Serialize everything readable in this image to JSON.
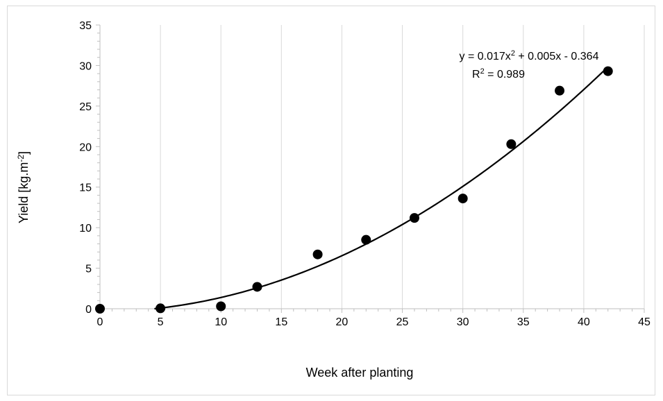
{
  "chart_data": {
    "type": "scatter",
    "xlabel": "Week after planting",
    "ylabel_main": "Yield [kg.m",
    "ylabel_sup": "-2",
    "ylabel_close": "]",
    "xlim": [
      0,
      45
    ],
    "ylim": [
      0,
      35
    ],
    "x_ticks": [
      0,
      5,
      10,
      15,
      20,
      25,
      30,
      35,
      40,
      45
    ],
    "y_ticks": [
      0,
      5,
      10,
      15,
      20,
      25,
      30,
      35
    ],
    "grid": "vertical",
    "points": [
      {
        "x": 0,
        "y": 0
      },
      {
        "x": 5,
        "y": 0.05
      },
      {
        "x": 10,
        "y": 0.3
      },
      {
        "x": 13,
        "y": 2.7
      },
      {
        "x": 18,
        "y": 6.7
      },
      {
        "x": 22,
        "y": 8.5
      },
      {
        "x": 26,
        "y": 11.2
      },
      {
        "x": 30,
        "y": 13.6
      },
      {
        "x": 34,
        "y": 20.3
      },
      {
        "x": 38,
        "y": 26.9
      },
      {
        "x": 42,
        "y": 29.3
      }
    ],
    "trendline": {
      "type": "polynomial",
      "coefficients": [
        0.017,
        0.005,
        -0.364
      ],
      "x_range": [
        0,
        42
      ],
      "equation_prefix": "y = 0.017x",
      "equation_sup": "2",
      "equation_suffix": " + 0.005x - 0.364",
      "r2_prefix": "R",
      "r2_sup": "2",
      "r2_suffix": " = 0.989"
    },
    "colors": {
      "marker": "#000000",
      "trendline": "#000000",
      "grid": "#d9d9d9",
      "axis": "#bfbfbf"
    }
  }
}
